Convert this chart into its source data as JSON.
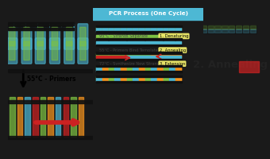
{
  "title": "PCR Process (One Cycle)",
  "title_bg": "#4db8d4",
  "title_color": "white",
  "bg_center": "#e8e8e8",
  "bg_left": "#3a3a3a",
  "bg_right": "#c8c8a0",
  "label_95": "95°C - Strands Separate",
  "label_55": "55°C - Primers Bind Template",
  "label_72": "72°C - Synthesize New Strand",
  "step1_label": "1. Denaturing",
  "step2_label": "2. Annealing",
  "step3_label": "3. Extension",
  "badge_bg": "#f0ec6a",
  "bar_green": "#7dc242",
  "bar_blue": "#4db8d4",
  "bar_orange": "#f7941d",
  "bar_red": "#cc2222",
  "black": "#111111",
  "left_text_55": "55°C - Primers",
  "right_text_annealing": "2. Annealing",
  "right_text_color": "#222222",
  "right_bg": "#d8d890"
}
